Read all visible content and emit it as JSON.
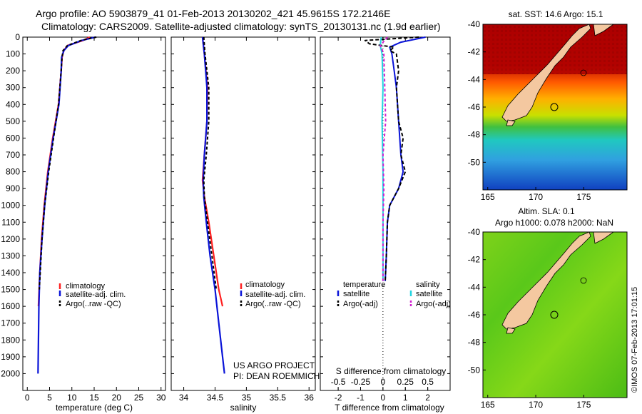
{
  "header": {
    "line1": "Argo profile: AO 5903879_41 01-Feb-2013 20130202_421 45.9615S 172.2146E",
    "line2": "Climatology: CARS2009. Satellite-adjusted climatology: synTS_20130131.nc (1.9d earlier)"
  },
  "colors": {
    "climatology": "#ff2020",
    "satellite": "#0a14d8",
    "argo": "#000000",
    "sal_satellite": "#22d4e0",
    "sal_argo": "#d020d0"
  },
  "chart_data": [
    {
      "id": "temperature",
      "type": "line",
      "xlabel": "temperature (deg C)",
      "ylabel": "",
      "xlim": [
        -1,
        31
      ],
      "ylim": [
        0,
        2100
      ],
      "xticks": [
        "0",
        "5",
        "10",
        "15",
        "20",
        "25",
        "30"
      ],
      "xtick_values": [
        0,
        5,
        10,
        15,
        20,
        25,
        30
      ],
      "yticks": [
        "0",
        "100",
        "200",
        "300",
        "400",
        "500",
        "600",
        "700",
        "800",
        "900",
        "1000",
        "1100",
        "1200",
        "1300",
        "1400",
        "1500",
        "1600",
        "1700",
        "1800",
        "1900",
        "2000"
      ],
      "legend": [
        "climatology",
        "satellite-adj. clim.",
        "Argo(..raw -QC)"
      ],
      "series": [
        {
          "name": "climatology",
          "depth": [
            0,
            20,
            50,
            80,
            120,
            200,
            400,
            600,
            800,
            1000,
            1200,
            1400,
            1600
          ],
          "values": [
            14.0,
            12.5,
            9.0,
            8.2,
            7.8,
            7.6,
            7.0,
            5.7,
            4.6,
            3.8,
            3.2,
            2.8,
            2.5
          ]
        },
        {
          "name": "satellite-adj. clim.",
          "depth": [
            0,
            20,
            50,
            80,
            120,
            200,
            400,
            600,
            800,
            1000,
            1200,
            1400,
            1600,
            1800,
            2000
          ],
          "values": [
            15.3,
            12.2,
            9.2,
            8.2,
            7.7,
            7.6,
            7.1,
            5.8,
            4.7,
            3.9,
            3.3,
            2.8,
            2.6,
            2.5,
            2.4
          ]
        },
        {
          "name": "Argo(..raw -QC)",
          "depth": [
            0,
            20,
            50,
            80,
            120,
            200,
            400,
            600,
            800,
            1000,
            1200,
            1400,
            1500
          ],
          "values": [
            15.5,
            12.0,
            9.0,
            8.0,
            7.8,
            7.6,
            7.0,
            5.9,
            4.8,
            3.9,
            3.3,
            2.9,
            2.7
          ]
        }
      ]
    },
    {
      "id": "salinity",
      "type": "line",
      "xlabel": "salinity",
      "xlim": [
        33.8,
        36.1
      ],
      "ylim": [
        0,
        2100
      ],
      "xticks": [
        "34",
        "34.5",
        "35",
        "35.5",
        "36"
      ],
      "xtick_values": [
        34,
        34.5,
        35,
        35.5,
        36
      ],
      "legend": [
        "climatology",
        "satellite-adj. clim.",
        "Argo(..raw -QC)"
      ],
      "annotation": [
        "US ARGO PROJECT",
        "PI: DEAN ROEMMICH"
      ],
      "series": [
        {
          "name": "climatology",
          "depth": [
            0,
            100,
            300,
            500,
            700,
            850,
            950,
            1100,
            1300,
            1500,
            1600
          ],
          "values": [
            34.3,
            34.33,
            34.38,
            34.37,
            34.33,
            34.3,
            34.33,
            34.4,
            34.48,
            34.56,
            34.62
          ]
        },
        {
          "name": "satellite-adj. clim.",
          "depth": [
            0,
            100,
            300,
            500,
            700,
            850,
            950,
            1100,
            1300,
            1500,
            1700,
            1900,
            2000
          ],
          "values": [
            34.3,
            34.33,
            34.37,
            34.37,
            34.33,
            34.31,
            34.32,
            34.36,
            34.42,
            34.5,
            34.56,
            34.62,
            34.65
          ]
        },
        {
          "name": "Argo(..raw -QC)",
          "depth": [
            0,
            100,
            300,
            500,
            700,
            850,
            950,
            1100,
            1300,
            1500
          ],
          "values": [
            34.32,
            34.34,
            34.4,
            34.4,
            34.36,
            34.32,
            34.33,
            34.38,
            34.45,
            34.52
          ]
        }
      ]
    },
    {
      "id": "difference",
      "type": "line",
      "xlabel": "T difference from climatology",
      "xlabel2": "S difference from climatology",
      "xlim": [
        -2.8,
        3.0
      ],
      "ylim": [
        0,
        2100
      ],
      "xticks": [
        "-2",
        "-1",
        "0",
        "1",
        "2"
      ],
      "xtick_values": [
        -2,
        -1,
        0,
        1,
        2
      ],
      "xticks2": [
        "-0.5",
        "-0.25",
        "0",
        "0.25",
        "0.5"
      ],
      "xtick2_values": [
        -0.5,
        -0.25,
        0,
        0.25,
        0.5
      ],
      "legend_headers": [
        "temperature",
        "salinity"
      ],
      "legend": [
        "satellite",
        "Argo(-adj)",
        "satellite",
        "Argo(-adj)"
      ],
      "series": [
        {
          "name": "T satellite",
          "depth": [
            0,
            30,
            60,
            100,
            200,
            300,
            500,
            700,
            800,
            900,
            1000,
            1100,
            1300,
            1450
          ],
          "values": [
            1.9,
            0.8,
            0.3,
            0.4,
            0.5,
            0.6,
            0.7,
            0.8,
            0.9,
            0.7,
            0.3,
            0.2,
            0.15,
            0.1
          ]
        },
        {
          "name": "T Argo(-adj)",
          "depth": [
            0,
            20,
            40,
            60,
            80,
            100,
            200,
            300,
            500,
            600,
            700,
            800,
            900,
            1000,
            1100,
            1300,
            1450
          ],
          "values": [
            1.6,
            -0.8,
            -0.6,
            0.5,
            0.3,
            0.6,
            0.7,
            0.6,
            0.7,
            0.9,
            0.8,
            1.0,
            0.7,
            0.3,
            0.2,
            0.15,
            0.1
          ]
        },
        {
          "name": "S satellite",
          "depth": [
            0,
            50,
            100,
            300,
            500,
            800,
            1000,
            1200,
            1450
          ],
          "values": [
            -0.02,
            -0.03,
            -0.01,
            0.0,
            -0.01,
            0.0,
            0.0,
            0.0,
            0.0
          ]
        },
        {
          "name": "S Argo(-adj)",
          "depth": [
            0,
            50,
            100,
            300,
            500,
            700,
            900,
            1100,
            1300,
            1450
          ],
          "values": [
            0.05,
            -0.03,
            0.01,
            0.02,
            0.03,
            0.0,
            0.01,
            0.0,
            0.0,
            0.0
          ]
        }
      ]
    },
    {
      "id": "sst-map",
      "type": "heatmap",
      "title": "sat. SST: 14.6 Argo: 15.1",
      "xticks": [
        "165",
        "170",
        "175"
      ],
      "yticks": [
        "-40",
        "-42",
        "-44",
        "-46",
        "-48",
        "-50"
      ],
      "lon_range": [
        164.5,
        179.5
      ],
      "lat_range": [
        -52,
        -40
      ]
    },
    {
      "id": "sla-map",
      "type": "heatmap",
      "title": "Altim. SLA: 0.1",
      "subtitle": "Argo h1000: 0.078 h2000: NaN",
      "xticks": [
        "165",
        "170",
        "175"
      ],
      "yticks": [
        "-40",
        "-42",
        "-44",
        "-46",
        "-48",
        "-50"
      ],
      "lon_range": [
        164.5,
        179.5
      ],
      "lat_range": [
        -52,
        -40
      ]
    }
  ],
  "watermark": "©IMOS 07-Feb-2013 17:01:15"
}
